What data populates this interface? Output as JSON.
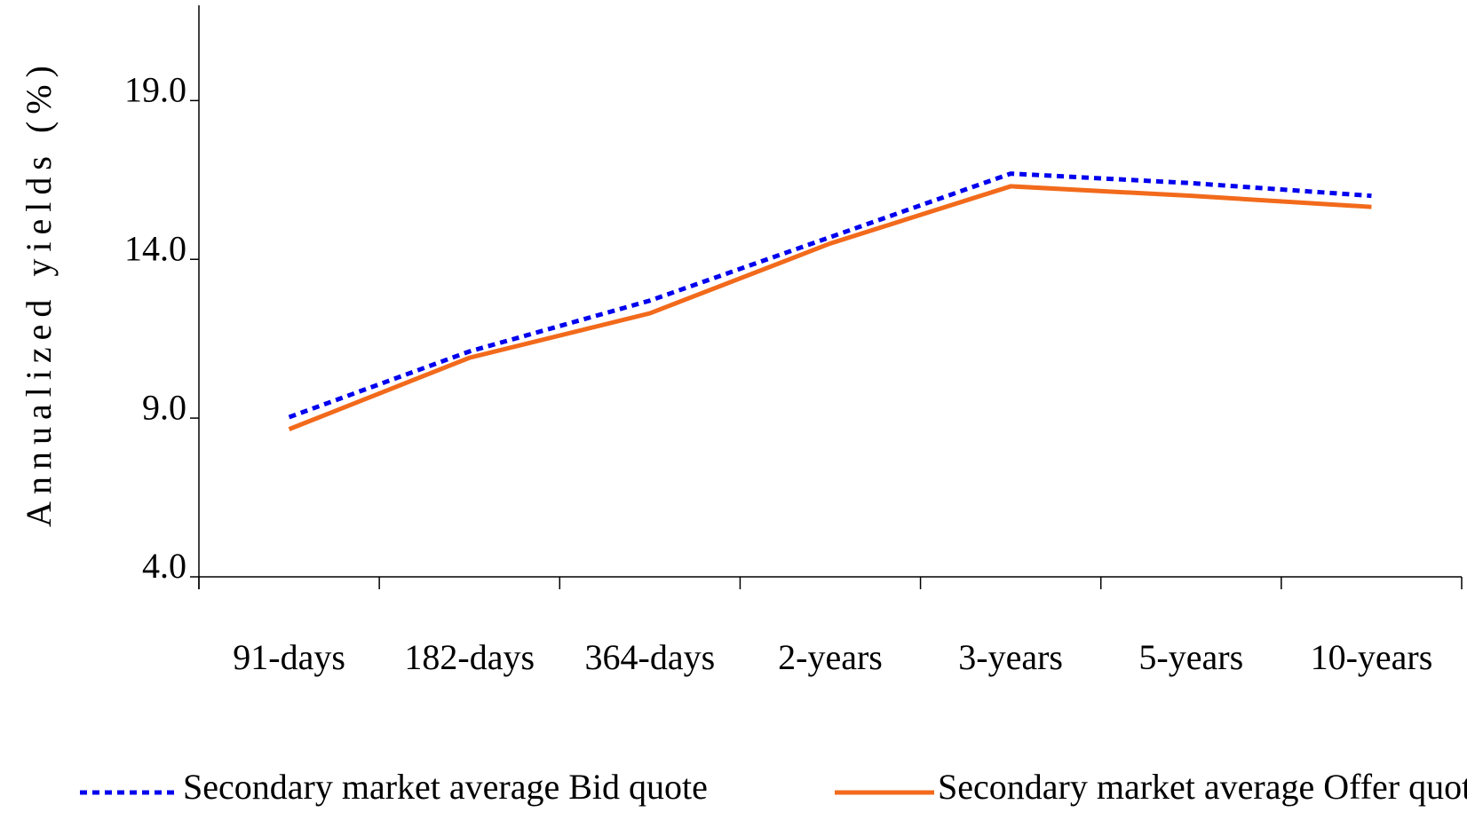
{
  "chart_data": {
    "type": "line",
    "y_label": "Annualized yields (%)",
    "categories": [
      "91-days",
      "182-days",
      "364-days",
      "2-years",
      "3-years",
      "5-years",
      "10-years"
    ],
    "series": [
      {
        "name": "Secondary market average Bid quote",
        "color": "#0000ee",
        "dash": "dotted",
        "values": [
          9.03,
          11.1,
          12.7,
          14.7,
          16.7,
          16.4,
          16.0
        ]
      },
      {
        "name": "Secondary market average Offer quote",
        "color": "#f26a1b",
        "dash": "solid",
        "values": [
          8.65,
          10.9,
          12.3,
          14.5,
          16.3,
          16.0,
          15.65
        ]
      }
    ],
    "ylim": [
      4,
      22
    ],
    "yticks": [
      {
        "value": 4,
        "label": "4.0"
      },
      {
        "value": 9,
        "label": "9.0"
      },
      {
        "value": 14,
        "label": "14.0"
      },
      {
        "value": 19,
        "label": "19.0"
      }
    ],
    "legend": "bottom"
  }
}
